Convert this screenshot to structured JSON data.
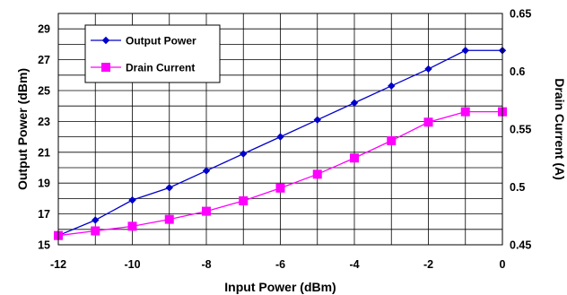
{
  "chart_data": {
    "type": "line",
    "title": "",
    "xlabel": "Input Power (dBm)",
    "ylabel": "Output Power (dBm)",
    "y2label": "Drain Current (A)",
    "xlim": [
      -12,
      0
    ],
    "ylim": [
      15,
      30
    ],
    "y2lim": [
      0.45,
      0.65
    ],
    "x_ticks": [
      -12,
      -10,
      -8,
      -6,
      -4,
      -2,
      0
    ],
    "y_ticks": [
      15,
      17,
      19,
      21,
      23,
      25,
      27,
      29
    ],
    "y2_ticks": [
      0.45,
      0.5,
      0.55,
      0.6,
      0.65
    ],
    "y2_tick_labels": [
      "0.45",
      "0.5",
      "0.55",
      "0.6",
      "0.65"
    ],
    "grid": true,
    "legend_position": "top-left",
    "x": [
      -12,
      -11,
      -10,
      -9,
      -8,
      -7,
      -6,
      -5,
      -4,
      -3,
      -2,
      -1,
      0
    ],
    "series": [
      {
        "name": "Output Power",
        "axis": "left",
        "color": "#0000CC",
        "marker": "diamond",
        "values": [
          15.6,
          16.6,
          17.9,
          18.7,
          19.8,
          20.9,
          22.0,
          23.1,
          24.2,
          25.3,
          26.4,
          27.6,
          27.6
        ]
      },
      {
        "name": "Drain Current",
        "axis": "right",
        "color": "#FF00FF",
        "marker": "square",
        "values": [
          0.458,
          0.462,
          0.466,
          0.472,
          0.479,
          0.488,
          0.499,
          0.511,
          0.525,
          0.54,
          0.556,
          0.565,
          0.565
        ]
      }
    ]
  }
}
